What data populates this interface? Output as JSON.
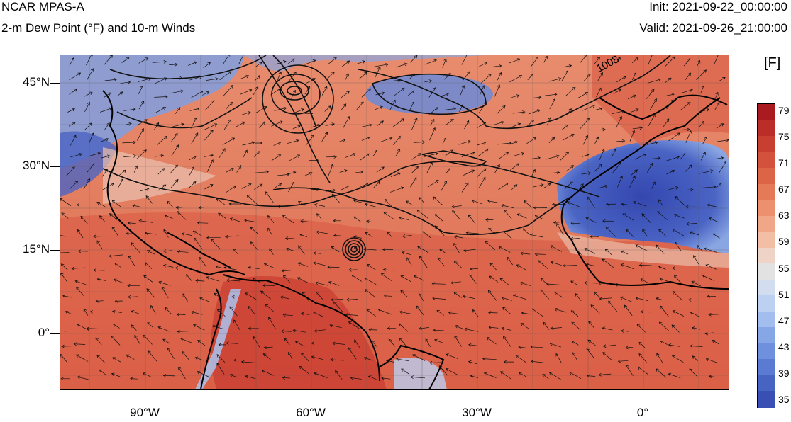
{
  "header": {
    "title": "NCAR MPAS-A",
    "subtitle": "2-m Dew Point (°F) and 10-m Winds",
    "init": "Init: 2021-09-22_00:00:00",
    "valid": "Valid: 2021-09-26_21:00:00"
  },
  "axes": {
    "lat_labels": [
      "45°N",
      "30°N",
      "15°N",
      "0°"
    ],
    "lon_labels": [
      "90°W",
      "60°W",
      "30°W",
      "0°"
    ]
  },
  "contour_label": "1008",
  "colorbar": {
    "unit": "[F]",
    "labels": [
      "79",
      "75",
      "71",
      "67",
      "63",
      "59",
      "55",
      "51",
      "47",
      "43",
      "39",
      "35"
    ],
    "colors_low_to_high": [
      "#3a4fb3",
      "#4764c3",
      "#5a7bd1",
      "#6f90dc",
      "#87a6e6",
      "#a2bdee",
      "#bcd0f2",
      "#d2ddf0",
      "#e2e2e2",
      "#efd3c6",
      "#f2bea6",
      "#f0a788",
      "#ec906d",
      "#e47a58",
      "#dc6548",
      "#d3523b",
      "#c83f31",
      "#bb2d28",
      "#aa1b21"
    ]
  }
}
